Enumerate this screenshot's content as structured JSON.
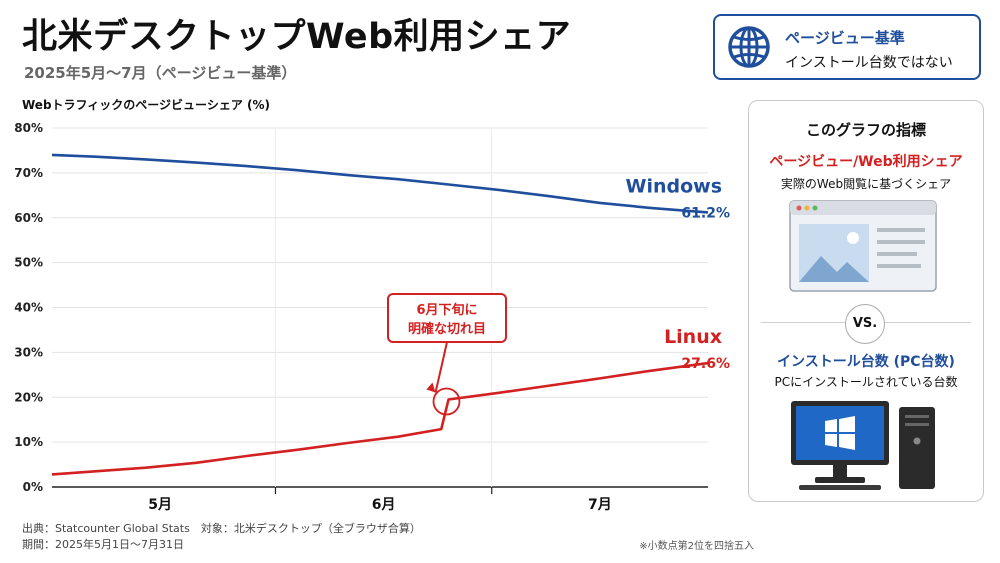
{
  "header": {
    "title": "北米デスクトップWeb利用シェア",
    "subtitle": "2025年5月〜7月（ページビュー基準）"
  },
  "badge": {
    "line1": "ページビュー基準",
    "line2": "インストール台数ではない",
    "icon": "globe-icon"
  },
  "side_panel": {
    "title": "このグラフの指標",
    "metric1_title": "ページビュー/Web利用シェア",
    "metric1_desc": "実際のWeb閲覧に基づくシェア",
    "vs": "VS.",
    "metric2_title": "インストール台数 (PC台数)",
    "metric2_desc": "PCにインストールされている台数"
  },
  "footer": {
    "source": "出典：Statcounter Global Stats　対象：北米デスクトップ（全ブラウザ合算）",
    "period": "期間：2025年5月1日〜7月31日",
    "note": "※小数点第2位を四捨五入"
  },
  "chart_data": {
    "type": "line",
    "ylabel": "Webトラフィックのページビューシェア (%)",
    "ylim": [
      0,
      80
    ],
    "yticks": [
      "0%",
      "10%",
      "20%",
      "30%",
      "40%",
      "50%",
      "60%",
      "70%",
      "80%"
    ],
    "x_range": [
      "2025-05-01",
      "2025-07-31"
    ],
    "month_labels": [
      "5月",
      "6月",
      "7月"
    ],
    "grid": true,
    "series": [
      {
        "name": "Windows",
        "end_label": "61.2%",
        "color": "#1f4e9c",
        "x": [
          "2025-05-01",
          "2025-05-07",
          "2025-05-14",
          "2025-05-21",
          "2025-05-28",
          "2025-06-04",
          "2025-06-11",
          "2025-06-18",
          "2025-06-25",
          "2025-07-02",
          "2025-07-09",
          "2025-07-16",
          "2025-07-23",
          "2025-07-31"
        ],
        "values": [
          74.0,
          73.6,
          73.0,
          72.3,
          71.5,
          70.6,
          69.5,
          68.6,
          67.4,
          66.2,
          64.8,
          63.3,
          62.2,
          61.2
        ]
      },
      {
        "name": "Linux",
        "end_label": "27.6%",
        "color": "#d32020",
        "x": [
          "2025-05-01",
          "2025-05-07",
          "2025-05-14",
          "2025-05-21",
          "2025-05-28",
          "2025-06-04",
          "2025-06-11",
          "2025-06-18",
          "2025-06-24",
          "2025-06-25",
          "2025-07-02",
          "2025-07-09",
          "2025-07-16",
          "2025-07-23",
          "2025-07-31"
        ],
        "values": [
          2.8,
          3.5,
          4.3,
          5.4,
          6.9,
          8.3,
          9.8,
          11.2,
          12.9,
          19.5,
          21.0,
          22.6,
          24.2,
          25.9,
          27.6
        ]
      }
    ],
    "annotation": {
      "text_line1": "6月下旬に",
      "text_line2": "明確な切れ目",
      "date": "2025-06-25",
      "value": 19.5
    }
  }
}
